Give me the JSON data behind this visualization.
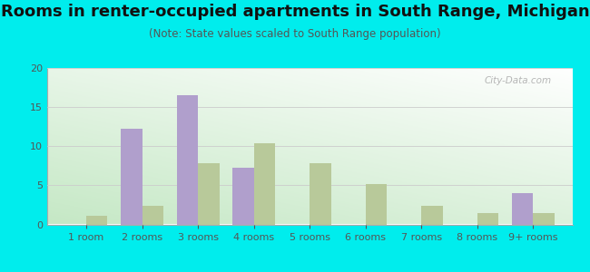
{
  "title": "Rooms in renter-occupied apartments in South Range, Michigan",
  "subtitle": "(Note: State values scaled to South Range population)",
  "categories": [
    "1 room",
    "2 rooms",
    "3 rooms",
    "4 rooms",
    "5 rooms",
    "6 rooms",
    "7 rooms",
    "8 rooms",
    "9+ rooms"
  ],
  "south_range": [
    0,
    12.2,
    16.5,
    7.2,
    0,
    0,
    0,
    0,
    4.0
  ],
  "michigan": [
    1.1,
    2.4,
    7.8,
    10.4,
    7.8,
    5.2,
    2.4,
    1.5,
    1.4
  ],
  "south_range_color": "#b09fcc",
  "michigan_color": "#b8c99a",
  "background_outer": "#00eded",
  "ylim": [
    0,
    20
  ],
  "yticks": [
    0,
    5,
    10,
    15,
    20
  ],
  "bar_width": 0.38,
  "title_fontsize": 13,
  "subtitle_fontsize": 8.5,
  "tick_fontsize": 8,
  "legend_fontsize": 9,
  "watermark": "City-Data.com"
}
